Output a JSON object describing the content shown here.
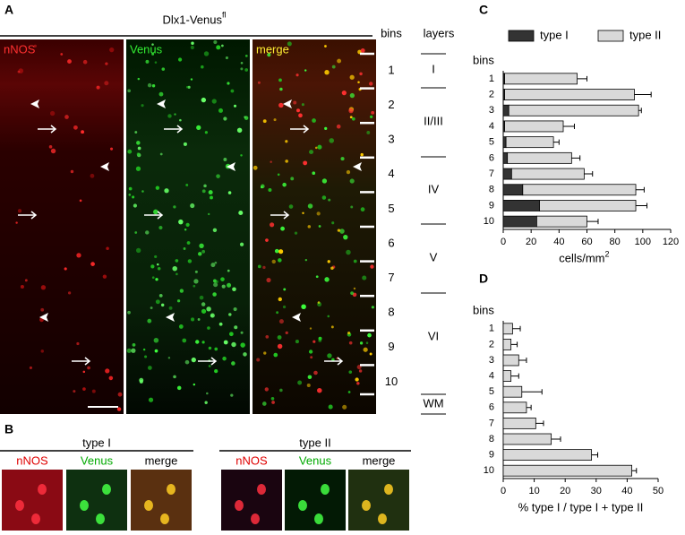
{
  "panels": {
    "A": {
      "label": "A",
      "title": "Dlx1-Venus",
      "title_sup": "fl",
      "channels": [
        "nNOS",
        "Venus",
        "merge"
      ],
      "bins_header": "bins",
      "layers_header": "layers",
      "bins": [
        1,
        2,
        3,
        4,
        5,
        6,
        7,
        8,
        9,
        10
      ],
      "layers": [
        "I",
        "II/III",
        "IV",
        "V",
        "VI",
        "WM"
      ]
    },
    "B": {
      "label": "B",
      "groups": [
        {
          "title": "type I",
          "channels": [
            "nNOS",
            "Venus",
            "merge"
          ]
        },
        {
          "title": "type II",
          "channels": [
            "nNOS",
            "Venus",
            "merge"
          ]
        }
      ]
    }
  },
  "chart_data": [
    {
      "type": "bar",
      "panel_label": "C",
      "orientation": "horizontal",
      "stacked": true,
      "legend": "top",
      "y_label": "bins",
      "x_label": "cells/mm",
      "x_label_sup": "2",
      "categories": [
        "1",
        "2",
        "3",
        "4",
        "5",
        "6",
        "7",
        "8",
        "9",
        "10"
      ],
      "series": [
        {
          "name": "type I",
          "color": "#333333",
          "values": [
            1,
            1,
            4,
            1,
            2,
            3,
            6,
            14,
            26,
            24
          ],
          "errors": [
            2,
            2,
            3,
            1,
            2,
            1,
            2,
            3,
            4,
            6
          ]
        },
        {
          "name": "type II",
          "color": "#d9d9d9",
          "values": [
            52,
            93,
            93,
            42,
            34,
            46,
            52,
            81,
            69,
            36
          ],
          "errors": [
            7,
            12,
            2,
            8,
            4,
            6,
            6,
            6,
            8,
            8
          ]
        }
      ],
      "xlim": [
        0,
        120
      ],
      "xticks": [
        0,
        20,
        40,
        60,
        80,
        100,
        120
      ]
    },
    {
      "type": "bar",
      "panel_label": "D",
      "orientation": "horizontal",
      "y_label": "bins",
      "x_label": "% type I / type I + type II",
      "categories": [
        "1",
        "2",
        "3",
        "4",
        "5",
        "6",
        "7",
        "8",
        "9",
        "10"
      ],
      "series": [
        {
          "color": "#d9d9d9",
          "values": [
            3,
            2.5,
            5,
            2.5,
            6,
            7.5,
            10.5,
            15.5,
            28.5,
            41.5
          ],
          "errors": [
            2.5,
            2,
            2.5,
            2.5,
            6.5,
            1.5,
            2.5,
            3,
            2,
            1.5
          ]
        }
      ],
      "xlim": [
        0,
        50
      ],
      "xticks": [
        0,
        10,
        20,
        30,
        40,
        50
      ]
    }
  ]
}
